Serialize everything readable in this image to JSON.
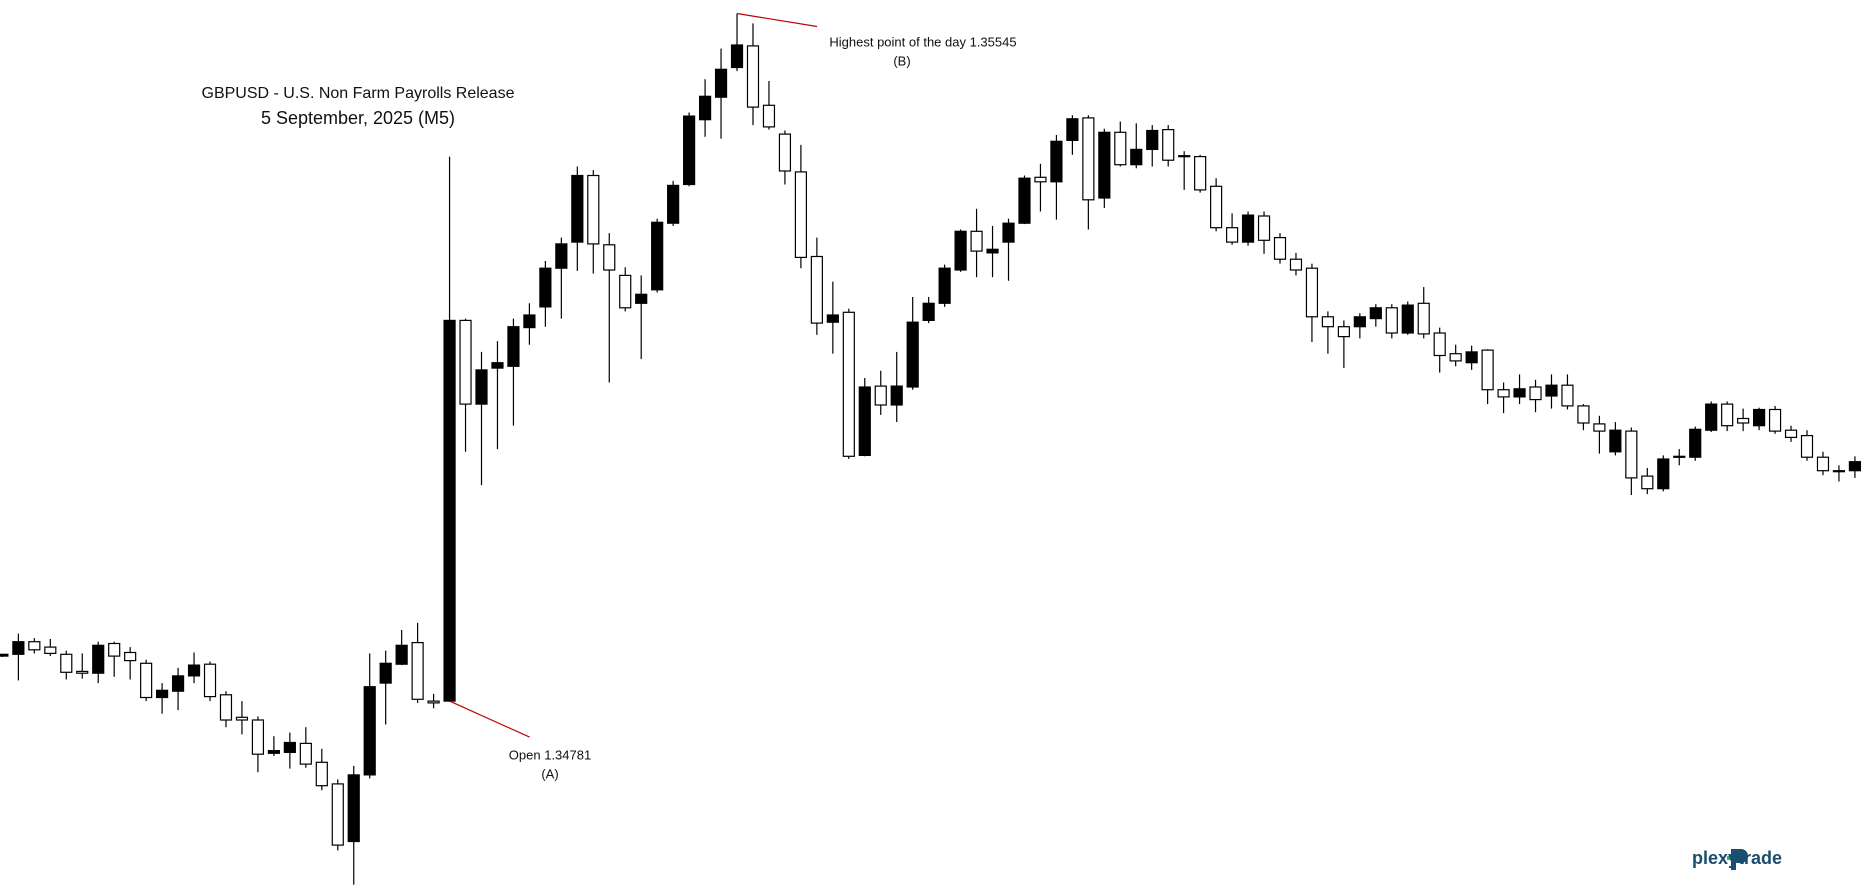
{
  "chart_data": {
    "type": "candlestick",
    "title": "GBPUSD - U.S. Non Farm Payrolls Release",
    "subtitle": "5 September, 2025 (M5)",
    "up_color": "#000000",
    "down_color": "#ffffff",
    "edge_color": "#000000",
    "annotation_color": "#c00000",
    "annotations": [
      {
        "text": "Open 1.34781",
        "sub": "(A)"
      },
      {
        "text": "Highest point of the day 1.35545",
        "sub": "(B)"
      }
    ],
    "ylim": [
      1.3457,
      1.3556
    ],
    "open": [
      1.34831,
      1.34833,
      1.34847,
      1.34841,
      1.34833,
      1.34814,
      1.34812,
      1.34845,
      1.34835,
      1.34823,
      1.34785,
      1.34792,
      1.34809,
      1.34822,
      1.34788,
      1.34763,
      1.3476,
      1.34723,
      1.34724,
      1.34734,
      1.34713,
      1.34689,
      1.34625,
      1.34699,
      1.34801,
      1.34822,
      1.34846,
      1.34781,
      1.34781,
      1.35204,
      1.35111,
      1.35151,
      1.35153,
      1.35196,
      1.35219,
      1.35262,
      1.35291,
      1.35365,
      1.35288,
      1.35254,
      1.35223,
      1.35238,
      1.35312,
      1.35355,
      1.35427,
      1.35452,
      1.35485,
      1.35509,
      1.35443,
      1.35411,
      1.35369,
      1.35275,
      1.35202,
      1.35213,
      1.35054,
      1.35131,
      1.3511,
      1.3513,
      1.35204,
      1.35223,
      1.3526,
      1.35303,
      1.35279,
      1.35291,
      1.35312,
      1.35363,
      1.35358,
      1.35404,
      1.35429,
      1.3534,
      1.35413,
      1.35377,
      1.35394,
      1.35416,
      1.35386,
      1.35386,
      1.35353,
      1.35307,
      1.35291,
      1.3532,
      1.35296,
      1.35272,
      1.35262,
      1.35208,
      1.35197,
      1.35197,
      1.35206,
      1.35218,
      1.3519,
      1.35223,
      1.3519,
      1.35167,
      1.35157,
      1.35171,
      1.35127,
      1.35119,
      1.3513,
      1.3512,
      1.35132,
      1.35109,
      1.35089,
      1.35058,
      1.35081,
      1.35031,
      1.35017,
      1.35052,
      1.35052,
      1.35082,
      1.35111,
      1.35095,
      1.35087,
      1.35105,
      1.35082,
      1.35076,
      1.35052,
      1.35037,
      1.35037
    ],
    "high": [
      1.34833,
      1.34856,
      1.34851,
      1.3485,
      1.34837,
      1.34834,
      1.34847,
      1.34847,
      1.34841,
      1.34827,
      1.34801,
      1.34818,
      1.34835,
      1.34825,
      1.34792,
      1.34781,
      1.34764,
      1.34742,
      1.34746,
      1.34752,
      1.34728,
      1.34694,
      1.34709,
      1.34834,
      1.34837,
      1.3486,
      1.34868,
      1.34789,
      1.35386,
      1.35206,
      1.35169,
      1.35181,
      1.35206,
      1.35223,
      1.3527,
      1.35296,
      1.35375,
      1.35371,
      1.35301,
      1.35263,
      1.35254,
      1.35317,
      1.35359,
      1.35435,
      1.35472,
      1.35506,
      1.35545,
      1.35534,
      1.3547,
      1.35415,
      1.35399,
      1.35296,
      1.35247,
      1.35217,
      1.3514,
      1.35148,
      1.35169,
      1.3523,
      1.3523,
      1.35266,
      1.35305,
      1.35328,
      1.35309,
      1.35317,
      1.35365,
      1.35378,
      1.3541,
      1.35432,
      1.35432,
      1.35417,
      1.35425,
      1.35423,
      1.35421,
      1.35421,
      1.35392,
      1.35388,
      1.35362,
      1.35323,
      1.35325,
      1.35325,
      1.35301,
      1.35279,
      1.35267,
      1.35214,
      1.35204,
      1.35212,
      1.35222,
      1.35222,
      1.35225,
      1.35241,
      1.35196,
      1.35177,
      1.35176,
      1.35172,
      1.35135,
      1.35144,
      1.35138,
      1.35144,
      1.35144,
      1.35111,
      1.35098,
      1.35091,
      1.35085,
      1.3504,
      1.35054,
      1.35061,
      1.35086,
      1.35114,
      1.35114,
      1.35106,
      1.35107,
      1.35109,
      1.35087,
      1.35082,
      1.35058,
      1.35043,
      1.35053
    ],
    "low": [
      1.3483,
      1.34804,
      1.34834,
      1.34831,
      1.34805,
      1.34806,
      1.34801,
      1.34808,
      1.34805,
      1.34781,
      1.34767,
      1.34771,
      1.34801,
      1.34781,
      1.34752,
      1.34744,
      1.34702,
      1.3472,
      1.34706,
      1.34707,
      1.34682,
      1.34615,
      1.34577,
      1.34695,
      1.34755,
      1.34821,
      1.34779,
      1.34773,
      1.3478,
      1.35058,
      1.35021,
      1.35061,
      1.35087,
      1.35177,
      1.35197,
      1.35206,
      1.35259,
      1.35256,
      1.35135,
      1.35214,
      1.35161,
      1.35235,
      1.35309,
      1.35353,
      1.35408,
      1.35406,
      1.35481,
      1.35421,
      1.35416,
      1.35355,
      1.35262,
      1.35188,
      1.35167,
      1.3505,
      1.35053,
      1.35099,
      1.35091,
      1.35127,
      1.35201,
      1.35219,
      1.35258,
      1.35252,
      1.35252,
      1.35248,
      1.35311,
      1.35325,
      1.35316,
      1.35388,
      1.35305,
      1.35329,
      1.35375,
      1.35373,
      1.35375,
      1.35375,
      1.35349,
      1.35346,
      1.35303,
      1.35288,
      1.35287,
      1.35278,
      1.35267,
      1.35254,
      1.3518,
      1.35167,
      1.35151,
      1.35184,
      1.35197,
      1.35184,
      1.35188,
      1.35184,
      1.35146,
      1.35153,
      1.35149,
      1.35111,
      1.35101,
      1.35111,
      1.35102,
      1.35106,
      1.35105,
      1.35082,
      1.35056,
      1.35054,
      1.3501,
      1.35011,
      1.35014,
      1.35043,
      1.35048,
      1.3508,
      1.35081,
      1.35081,
      1.35082,
      1.35078,
      1.35069,
      1.35048,
      1.35032,
      1.35025,
      1.35029
    ],
    "close": [
      1.34833,
      1.34847,
      1.34838,
      1.34834,
      1.34813,
      1.34812,
      1.34843,
      1.34831,
      1.34826,
      1.34785,
      1.34793,
      1.34809,
      1.34821,
      1.34786,
      1.3476,
      1.3476,
      1.34722,
      1.34726,
      1.34735,
      1.34711,
      1.34687,
      1.34621,
      1.34699,
      1.34797,
      1.34823,
      1.34843,
      1.34783,
      1.34779,
      1.35204,
      1.35111,
      1.35149,
      1.35157,
      1.35197,
      1.3521,
      1.35262,
      1.35289,
      1.35365,
      1.35289,
      1.3526,
      1.35218,
      1.35233,
      1.35313,
      1.35354,
      1.35431,
      1.35453,
      1.35483,
      1.3551,
      1.35441,
      1.35419,
      1.3537,
      1.35274,
      1.35201,
      1.3521,
      1.35053,
      1.3513,
      1.3511,
      1.35131,
      1.35202,
      1.35223,
      1.35262,
      1.35303,
      1.35281,
      1.35283,
      1.35312,
      1.35362,
      1.35358,
      1.35403,
      1.35428,
      1.35338,
      1.35413,
      1.35377,
      1.35394,
      1.35415,
      1.35382,
      1.35387,
      1.35349,
      1.35307,
      1.35291,
      1.35321,
      1.35293,
      1.35272,
      1.3526,
      1.35208,
      1.35197,
      1.35186,
      1.35208,
      1.35218,
      1.3519,
      1.35221,
      1.35189,
      1.35165,
      1.35159,
      1.35169,
      1.35127,
      1.35119,
      1.35128,
      1.35116,
      1.35132,
      1.35109,
      1.3509,
      1.35081,
      1.35082,
      1.35029,
      1.35017,
      1.3505,
      1.35053,
      1.35083,
      1.35111,
      1.35087,
      1.3509,
      1.35105,
      1.35081,
      1.35074,
      1.35052,
      1.35037,
      1.35036,
      1.35047
    ]
  },
  "logo": "plexytrade"
}
